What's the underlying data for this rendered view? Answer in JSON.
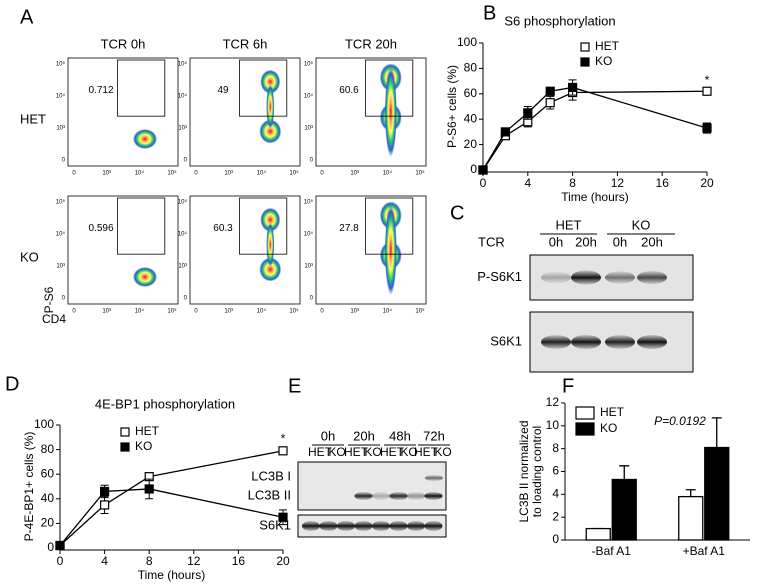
{
  "panel_labels": [
    "A",
    "B",
    "C",
    "D",
    "E",
    "F"
  ],
  "flow": {
    "columns": [
      "TCR 0h",
      "TCR 6h",
      "TCR 20h"
    ],
    "rows": [
      "HET",
      "KO"
    ],
    "gates": [
      [
        0.712,
        49,
        60.6
      ],
      [
        0.596,
        60.3,
        27.8
      ]
    ],
    "y_label": "P-S6",
    "x_label": "CD4",
    "axis_ticks": [
      "0",
      "10³",
      "10⁴",
      "10⁵"
    ]
  },
  "chart_data": [
    {
      "type": "line",
      "title": "S6 phosphorylation",
      "xlabel": "Time (hours)",
      "ylabel": "P-S6+ cells (%)",
      "x": [
        0,
        2,
        4,
        6,
        8,
        20
      ],
      "xlim": [
        0,
        20
      ],
      "xticks": [
        0,
        4,
        8,
        12,
        16,
        20
      ],
      "ylim": [
        0,
        100
      ],
      "yticks": [
        0,
        20,
        40,
        60,
        80,
        100
      ],
      "annotation": "*",
      "series": [
        {
          "name": "HET",
          "color": "#000000",
          "marker": "open-square",
          "values": [
            0,
            27,
            38,
            53,
            61,
            62
          ],
          "errors": [
            0,
            2,
            4,
            5,
            6,
            2
          ]
        },
        {
          "name": "KO",
          "color": "#000000",
          "marker": "filled-square",
          "values": [
            0,
            30,
            45,
            62,
            65,
            33
          ],
          "errors": [
            0,
            2,
            5,
            3,
            6,
            4
          ]
        }
      ]
    },
    {
      "type": "line",
      "title": "4E-BP1 phosphorylation",
      "xlabel": "Time (hours)",
      "ylabel": "P-4E-BP1+ cells (%)",
      "x": [
        0,
        4,
        8,
        20
      ],
      "xlim": [
        0,
        20
      ],
      "xticks": [
        0,
        4,
        8,
        12,
        16,
        20
      ],
      "ylim": [
        0,
        100
      ],
      "yticks": [
        0,
        20,
        40,
        60,
        80,
        100
      ],
      "annotation": "*",
      "series": [
        {
          "name": "HET",
          "color": "#000000",
          "marker": "open-square",
          "values": [
            2,
            35,
            58,
            79
          ],
          "errors": [
            1,
            7,
            2,
            3
          ]
        },
        {
          "name": "KO",
          "color": "#000000",
          "marker": "filled-square",
          "values": [
            2,
            46,
            48,
            25
          ],
          "errors": [
            2,
            5,
            8,
            6
          ]
        }
      ]
    },
    {
      "type": "bar",
      "ylabel": "LC3B II normalized to loading control",
      "annotation": "P=0.0192",
      "categories": [
        "-Baf A1",
        "+Baf A1"
      ],
      "ylim": [
        0,
        12
      ],
      "yticks": [
        0,
        2,
        4,
        6,
        8,
        10,
        12
      ],
      "series": [
        {
          "name": "HET",
          "color": "#ffffff",
          "values": [
            1.0,
            3.8
          ],
          "errors": [
            0,
            0.6
          ]
        },
        {
          "name": "KO",
          "color": "#000000",
          "values": [
            5.3,
            8.1
          ],
          "errors": [
            1.2,
            2.6
          ]
        }
      ]
    }
  ],
  "blot_c": {
    "groups": [
      "HET",
      "KO"
    ],
    "row_label": "TCR",
    "lanes": [
      "0h",
      "20h",
      "0h",
      "20h"
    ],
    "bands": [
      "P-S6K1",
      "S6K1"
    ]
  },
  "blot_e": {
    "timepoints": [
      "0h",
      "20h",
      "48h",
      "72h"
    ],
    "genotypes": [
      "HET",
      "KO"
    ],
    "bands": [
      "LC3B I",
      "LC3B II",
      "S6K1"
    ]
  }
}
